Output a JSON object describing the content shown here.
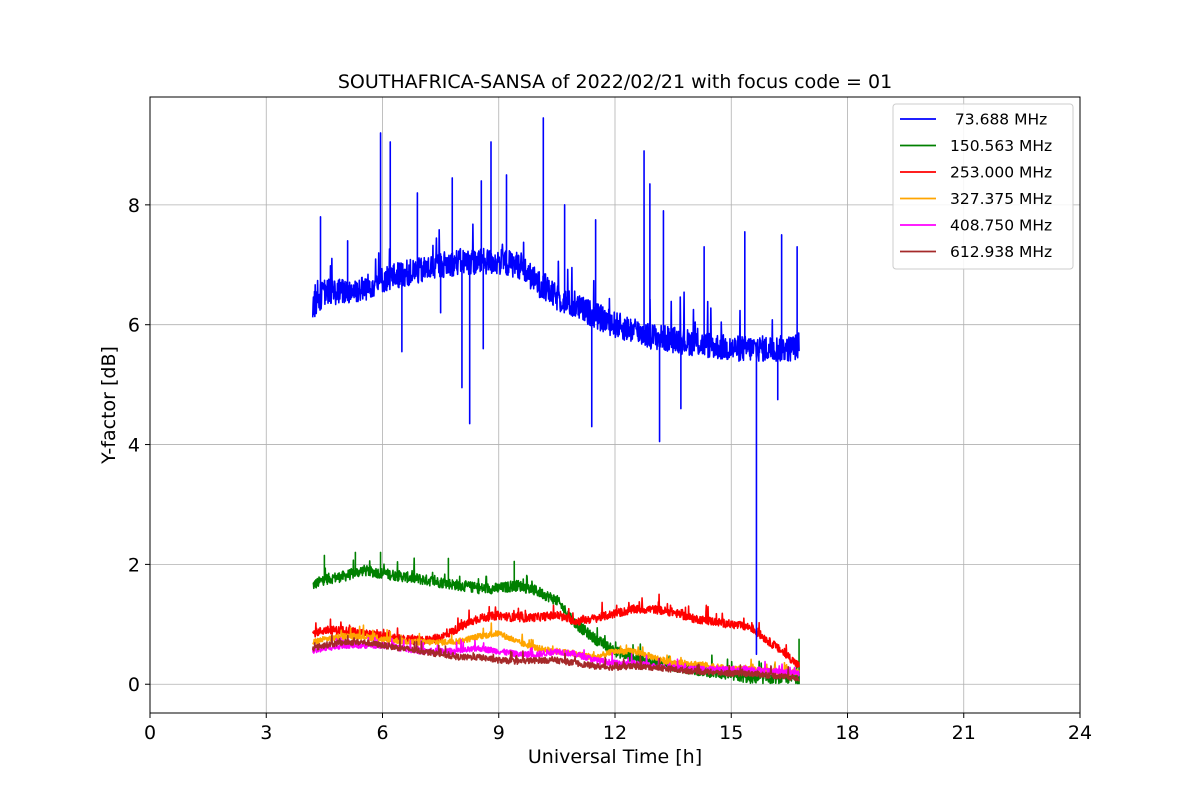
{
  "chart_data": {
    "type": "line",
    "title": "SOUTHAFRICA-SANSA of 2022/02/21 with focus code = 01",
    "xlabel": "Universal Time [h]",
    "ylabel": "Y-factor [dB]",
    "xlim": [
      0,
      24
    ],
    "ylim": [
      -0.48,
      9.8
    ],
    "xticks": [
      0,
      3,
      6,
      9,
      12,
      15,
      18,
      21,
      24
    ],
    "yticks": [
      0,
      2,
      4,
      6,
      8
    ],
    "grid": true,
    "legend_position": "top-right",
    "series": [
      {
        "name": " 73.688 MHz",
        "color": "#0000ff",
        "x": [
          4.2,
          4.5,
          5.0,
          5.5,
          6.0,
          6.5,
          7.0,
          7.5,
          8.0,
          8.5,
          9.0,
          9.5,
          10.0,
          10.5,
          11.0,
          11.5,
          12.0,
          12.5,
          13.0,
          13.5,
          14.0,
          14.5,
          15.0,
          15.5,
          16.0,
          16.5,
          16.75
        ],
        "values": [
          6.3,
          6.55,
          6.55,
          6.6,
          6.75,
          6.85,
          6.9,
          7.0,
          7.05,
          7.05,
          7.05,
          7.0,
          6.7,
          6.45,
          6.3,
          6.15,
          6.0,
          5.9,
          5.8,
          5.75,
          5.7,
          5.65,
          5.6,
          5.6,
          5.6,
          5.6,
          5.65
        ],
        "noise": 0.22,
        "spikes_up": [
          [
            4.4,
            7.8
          ],
          [
            5.1,
            7.4
          ],
          [
            5.95,
            9.2
          ],
          [
            6.2,
            9.05
          ],
          [
            6.9,
            8.2
          ],
          [
            7.8,
            8.45
          ],
          [
            8.55,
            8.4
          ],
          [
            8.8,
            9.05
          ],
          [
            9.2,
            8.5
          ],
          [
            10.15,
            9.45
          ],
          [
            10.7,
            8.0
          ],
          [
            11.5,
            7.75
          ],
          [
            12.75,
            8.9
          ],
          [
            12.9,
            8.35
          ],
          [
            13.25,
            7.9
          ],
          [
            14.3,
            7.3
          ],
          [
            15.35,
            7.55
          ],
          [
            16.3,
            7.5
          ],
          [
            16.7,
            7.3
          ]
        ],
        "spikes_down": [
          [
            6.5,
            5.55
          ],
          [
            7.5,
            6.2
          ],
          [
            8.05,
            4.95
          ],
          [
            8.25,
            4.35
          ],
          [
            8.6,
            5.6
          ],
          [
            11.4,
            4.3
          ],
          [
            13.15,
            4.05
          ],
          [
            13.7,
            4.6
          ],
          [
            15.65,
            0.5
          ],
          [
            16.2,
            4.75
          ]
        ]
      },
      {
        "name": "150.563 MHz",
        "color": "#008000",
        "x": [
          4.2,
          4.5,
          5.0,
          5.5,
          6.0,
          6.5,
          7.0,
          7.5,
          8.0,
          8.5,
          9.0,
          9.5,
          10.0,
          10.5,
          11.0,
          11.5,
          12.0,
          12.5,
          13.0,
          13.5,
          14.0,
          14.5,
          15.0,
          15.5,
          16.0,
          16.5,
          16.75
        ],
        "values": [
          1.65,
          1.75,
          1.8,
          1.9,
          1.85,
          1.8,
          1.75,
          1.7,
          1.65,
          1.6,
          1.6,
          1.65,
          1.55,
          1.4,
          1.0,
          0.75,
          0.55,
          0.45,
          0.35,
          0.3,
          0.25,
          0.2,
          0.15,
          0.1,
          0.1,
          0.1,
          0.1
        ],
        "noise": 0.09,
        "spikes_up": [
          [
            4.5,
            2.15
          ],
          [
            5.3,
            2.2
          ],
          [
            5.95,
            2.2
          ],
          [
            7.7,
            2.1
          ],
          [
            9.4,
            2.05
          ],
          [
            16.75,
            0.75
          ]
        ],
        "spikes_down": []
      },
      {
        "name": "253.000 MHz",
        "color": "#ff0000",
        "x": [
          4.2,
          4.5,
          5.0,
          5.5,
          6.0,
          6.5,
          7.0,
          7.5,
          8.0,
          8.5,
          9.0,
          9.5,
          10.0,
          10.5,
          11.0,
          11.5,
          12.0,
          12.5,
          13.0,
          13.5,
          14.0,
          14.5,
          15.0,
          15.5,
          16.0,
          16.5,
          16.75
        ],
        "values": [
          0.85,
          0.9,
          0.9,
          0.85,
          0.8,
          0.75,
          0.72,
          0.78,
          0.95,
          1.1,
          1.15,
          1.1,
          1.12,
          1.15,
          1.05,
          1.1,
          1.18,
          1.25,
          1.25,
          1.2,
          1.1,
          1.05,
          1.0,
          0.95,
          0.7,
          0.45,
          0.3
        ],
        "noise": 0.07,
        "spikes_up": [],
        "spikes_down": []
      },
      {
        "name": "327.375 MHz",
        "color": "#ffa500",
        "x": [
          4.2,
          4.5,
          5.0,
          5.5,
          6.0,
          6.5,
          7.0,
          7.5,
          8.0,
          8.5,
          9.0,
          9.5,
          10.0,
          10.5,
          11.0,
          11.5,
          12.0,
          12.5,
          13.0,
          13.5,
          14.0,
          14.5,
          15.0,
          15.5,
          16.0,
          16.5,
          16.75
        ],
        "values": [
          0.7,
          0.75,
          0.8,
          0.8,
          0.75,
          0.72,
          0.7,
          0.7,
          0.72,
          0.8,
          0.85,
          0.7,
          0.6,
          0.55,
          0.5,
          0.45,
          0.55,
          0.55,
          0.45,
          0.35,
          0.35,
          0.3,
          0.25,
          0.25,
          0.22,
          0.2,
          0.2
        ],
        "noise": 0.05,
        "spikes_up": [],
        "spikes_down": []
      },
      {
        "name": "408.750 MHz",
        "color": "#ff00ff",
        "x": [
          4.2,
          4.5,
          5.0,
          5.5,
          6.0,
          6.5,
          7.0,
          7.5,
          8.0,
          8.5,
          9.0,
          9.5,
          10.0,
          10.5,
          11.0,
          11.5,
          12.0,
          12.5,
          13.0,
          13.5,
          14.0,
          14.5,
          15.0,
          15.5,
          16.0,
          16.5,
          16.75
        ],
        "values": [
          0.55,
          0.6,
          0.65,
          0.65,
          0.65,
          0.6,
          0.55,
          0.55,
          0.55,
          0.6,
          0.55,
          0.5,
          0.5,
          0.55,
          0.5,
          0.4,
          0.35,
          0.35,
          0.3,
          0.28,
          0.25,
          0.25,
          0.25,
          0.25,
          0.22,
          0.2,
          0.18
        ],
        "noise": 0.05,
        "spikes_up": [],
        "spikes_down": []
      },
      {
        "name": "612.938 MHz",
        "color": "#a52a2a",
        "x": [
          4.2,
          4.5,
          5.0,
          5.5,
          6.0,
          6.5,
          7.0,
          7.5,
          8.0,
          8.5,
          9.0,
          9.5,
          10.0,
          10.5,
          11.0,
          11.5,
          12.0,
          12.5,
          13.0,
          13.5,
          14.0,
          14.5,
          15.0,
          15.5,
          16.0,
          16.5,
          16.75
        ],
        "values": [
          0.6,
          0.65,
          0.7,
          0.7,
          0.65,
          0.6,
          0.55,
          0.5,
          0.45,
          0.45,
          0.4,
          0.38,
          0.4,
          0.4,
          0.35,
          0.3,
          0.28,
          0.3,
          0.28,
          0.25,
          0.22,
          0.2,
          0.18,
          0.18,
          0.15,
          0.12,
          0.1
        ],
        "noise": 0.05,
        "spikes_up": [],
        "spikes_down": []
      }
    ]
  }
}
